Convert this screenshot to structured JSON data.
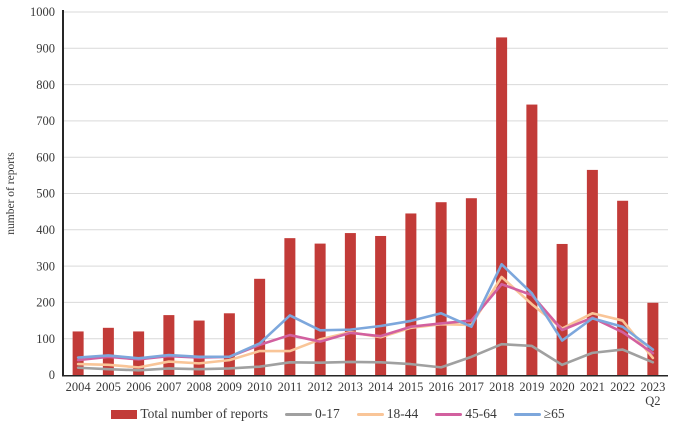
{
  "chart_data": {
    "type": "bar+line",
    "title": "",
    "ylabel": "number of reports",
    "xlabel": "",
    "ylim": [
      0,
      1000
    ],
    "ytick_step": 100,
    "grid": "horizontal",
    "legend_position": "bottom",
    "categories": [
      "2004",
      "2005",
      "2006",
      "2007",
      "2008",
      "2009",
      "2010",
      "2011",
      "2012",
      "2013",
      "2014",
      "2015",
      "2016",
      "2017",
      "2018",
      "2019",
      "2020",
      "2021",
      "2022",
      "2023"
    ],
    "last_category_suffix": "Q2",
    "bar_series": {
      "name": "Total number of reports",
      "color": "#c23b38",
      "values": [
        120,
        130,
        120,
        165,
        150,
        170,
        265,
        377,
        362,
        391,
        383,
        445,
        476,
        487,
        930,
        745,
        361,
        565,
        480,
        199
      ]
    },
    "line_series": [
      {
        "name": "0-17",
        "color": "#a0a0a0",
        "values": [
          20,
          16,
          13,
          18,
          16,
          18,
          23,
          35,
          34,
          36,
          35,
          30,
          21,
          50,
          85,
          80,
          28,
          61,
          70,
          35
        ]
      },
      {
        "name": "18-44",
        "color": "#f9c598",
        "values": [
          30,
          28,
          21,
          37,
          32,
          41,
          66,
          66,
          98,
          118,
          104,
          130,
          140,
          138,
          270,
          195,
          128,
          170,
          150,
          47
        ]
      },
      {
        "name": "45-64",
        "color": "#d2609f",
        "values": [
          41,
          50,
          43,
          52,
          48,
          50,
          83,
          110,
          92,
          116,
          107,
          133,
          142,
          150,
          250,
          220,
          124,
          158,
          118,
          60
        ]
      },
      {
        "name": "≥65",
        "color": "#7da7dc",
        "values": [
          48,
          54,
          46,
          55,
          50,
          50,
          87,
          164,
          123,
          125,
          135,
          149,
          170,
          133,
          305,
          225,
          95,
          156,
          133,
          70
        ]
      }
    ],
    "colors": {
      "gridline": "#d9d9d9",
      "axis": "#262626",
      "text": "#3a3a3a"
    }
  }
}
